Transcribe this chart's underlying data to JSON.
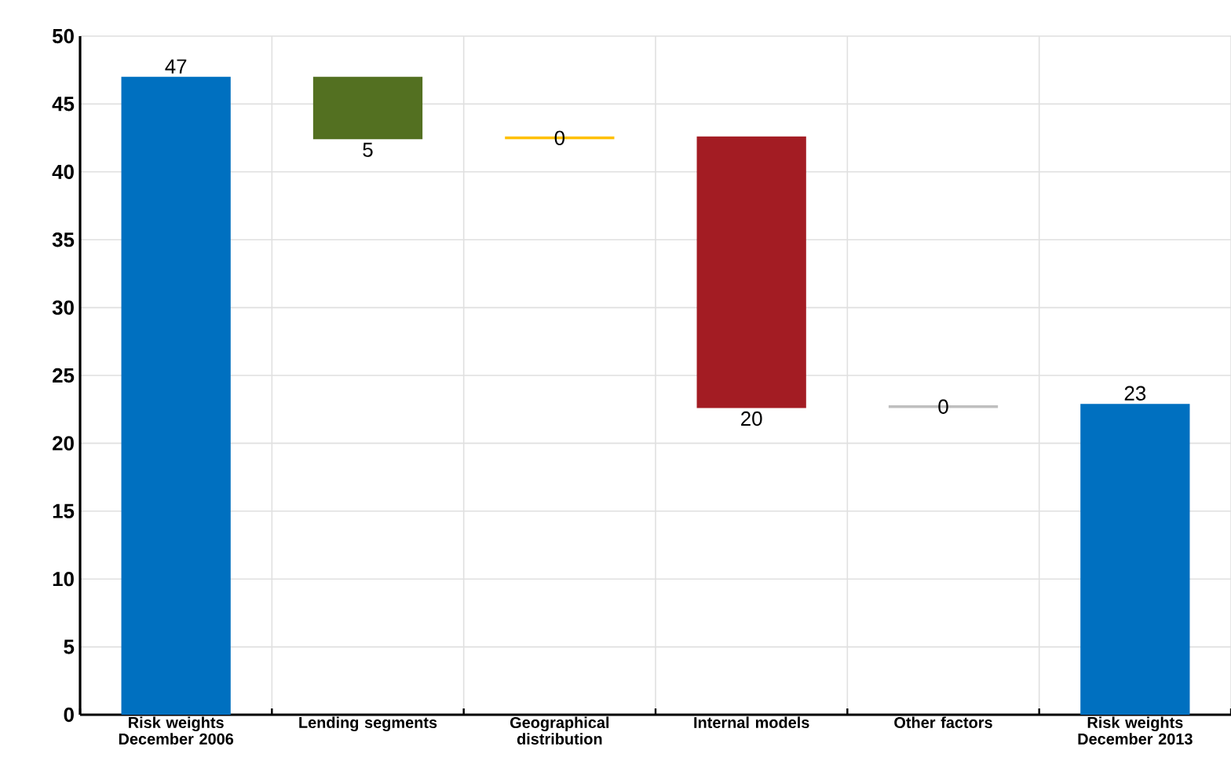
{
  "chart_data": {
    "type": "bar",
    "categories": [
      "Risk weights December 2006",
      "Lending segments",
      "Geographical distribution",
      "Internal models",
      "Other factors",
      "Risk weights December 2013"
    ],
    "values": [
      47.0,
      -4.6,
      0.2,
      -20.0,
      0.2,
      22.9
    ],
    "base": [
      0,
      47.0,
      42.4,
      42.6,
      22.6,
      0
    ],
    "colors": [
      "#0070c0",
      "#537021",
      "#ffc000",
      "#a31c23",
      "#bfbfbf",
      "#0070c0"
    ],
    "value_labels": [
      "47",
      "5",
      "0",
      "20",
      "0",
      "23"
    ],
    "ylim": [
      0,
      50
    ],
    "yticks": [
      0,
      5,
      10,
      15,
      20,
      25,
      30,
      35,
      40,
      45,
      50
    ],
    "grid": true
  }
}
